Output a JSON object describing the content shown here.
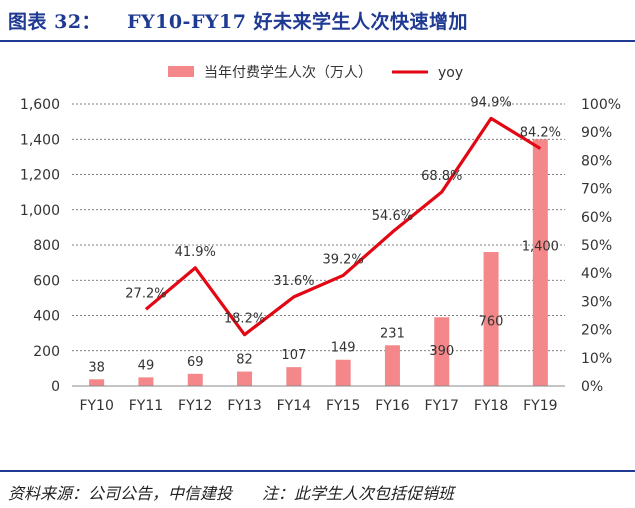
{
  "figure": {
    "label": "图表 32：",
    "title": "FY10-FY17 好未来学生人次快速增加",
    "source": "资料来源：公司公告，中信建投",
    "note": "注：此学生人次包括促销班"
  },
  "colors": {
    "bar": "#f4878a",
    "line": "#e30613",
    "title": "#1f3a93"
  },
  "chart_data": {
    "type": "bar+line",
    "categories": [
      "FY10",
      "FY11",
      "FY12",
      "FY13",
      "FY14",
      "FY15",
      "FY16",
      "FY17",
      "FY18",
      "FY19"
    ],
    "series": [
      {
        "name": "当年付费学生人次（万人）",
        "type": "bar",
        "axis": "left",
        "values": [
          38,
          49,
          69,
          82,
          107,
          149,
          231,
          390,
          760,
          1400
        ],
        "labels": [
          "38",
          "49",
          "69",
          "82",
          "107",
          "149",
          "231",
          "390",
          "760",
          "1,400"
        ]
      },
      {
        "name": "yoy",
        "type": "line",
        "axis": "right",
        "values": [
          null,
          27.2,
          41.9,
          18.2,
          31.6,
          39.2,
          54.6,
          68.8,
          94.9,
          84.2
        ],
        "labels": [
          "",
          "27.2%",
          "41.9%",
          "18.2%",
          "31.6%",
          "39.2%",
          "54.6%",
          "68.8%",
          "94.9%",
          "84.2%"
        ]
      }
    ],
    "y_left": {
      "range": [
        0,
        1600
      ],
      "ticks": [
        "0",
        "200",
        "400",
        "600",
        "800",
        "1,000",
        "1,200",
        "1,400",
        "1,600"
      ]
    },
    "y_right": {
      "range": [
        0,
        100
      ],
      "ticks": [
        "0%",
        "10%",
        "20%",
        "30%",
        "40%",
        "50%",
        "60%",
        "70%",
        "80%",
        "90%",
        "100%"
      ]
    },
    "legend_position": "top",
    "grid": true
  }
}
